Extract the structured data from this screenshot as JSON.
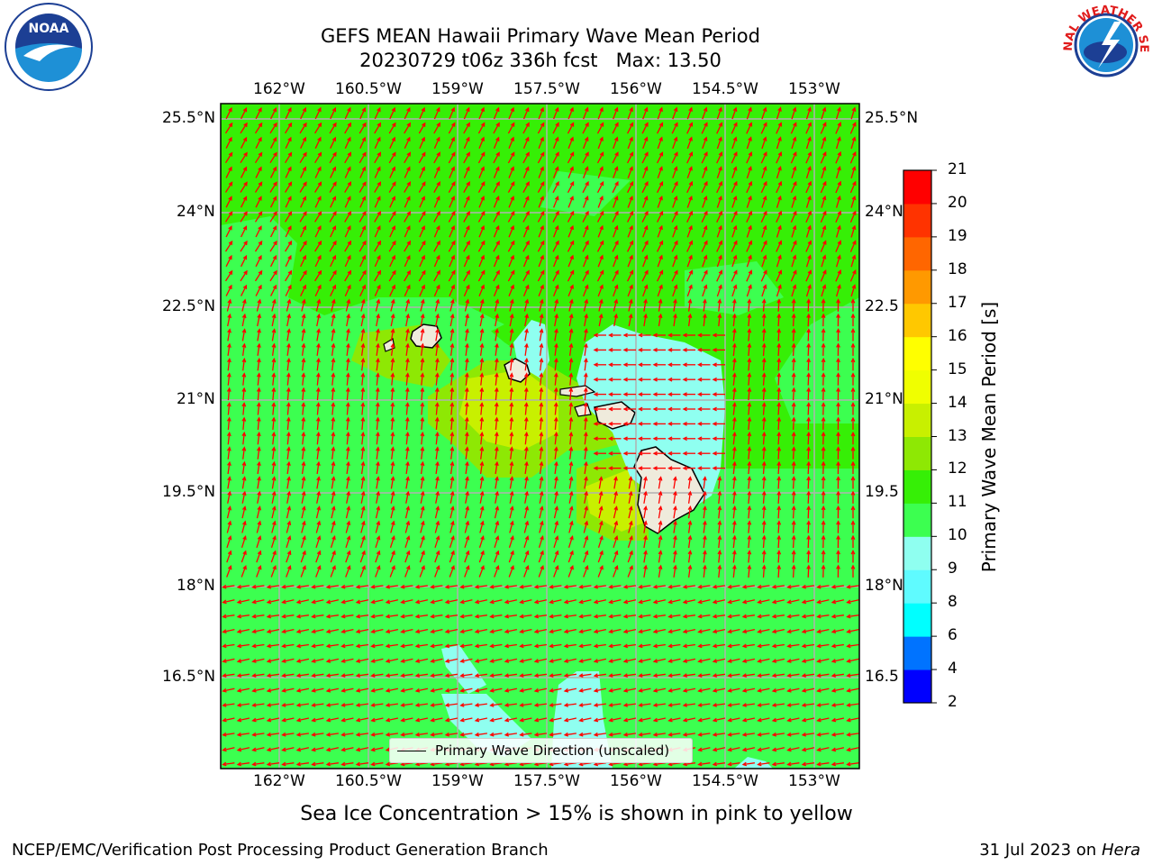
{
  "title_line1": "GEFS MEAN Hawaii Primary Wave Mean Period",
  "title_run": "20230729 t06z 336h fcst",
  "title_max": "Max: 13.50",
  "lon_ticks": [
    "162°W",
    "160.5°W",
    "159°W",
    "157.5°W",
    "156°W",
    "154.5°W",
    "153°W"
  ],
  "lat_ticks": [
    "25.5°N",
    "24°N",
    "22.5°N",
    "21°N",
    "19.5°N",
    "18°N",
    "16.5°N"
  ],
  "lat_ticks_right": [
    "25.5°N",
    "24°N",
    "22.5",
    "21°N",
    "19.5",
    "18°N",
    "16.5"
  ],
  "colorbar": {
    "label": "Primary Wave Mean Period [s]",
    "levels": [
      "2",
      "4",
      "6",
      "8",
      "9",
      "10",
      "11",
      "12",
      "13",
      "14",
      "15",
      "16",
      "17",
      "18",
      "19",
      "20",
      "21"
    ],
    "colors": [
      "#0000ff",
      "#0073ff",
      "#00ffff",
      "#5ffbff",
      "#8ffff0",
      "#3cff50",
      "#36ef06",
      "#8ee804",
      "#c8f000",
      "#f0ff00",
      "#ffff00",
      "#ffc800",
      "#ff9900",
      "#ff6600",
      "#ff3300",
      "#ff0000"
    ]
  },
  "legend": {
    "label": "Primary Wave Direction (unscaled)"
  },
  "caption": "Sea Ice Concentration > 15% is shown in pink to yellow",
  "footer_left": "NCEP/EMC/Verification Post Processing Product Generation Branch",
  "footer_date": "31 Jul 2023 on",
  "footer_host": "Hera",
  "logos": {
    "left": "NOAA",
    "right": "NATIONAL WEATHER SERVICE"
  },
  "colors": {
    "arrow": "#ff0000",
    "land": "#efebdc",
    "grid": "#b0b0b0"
  }
}
